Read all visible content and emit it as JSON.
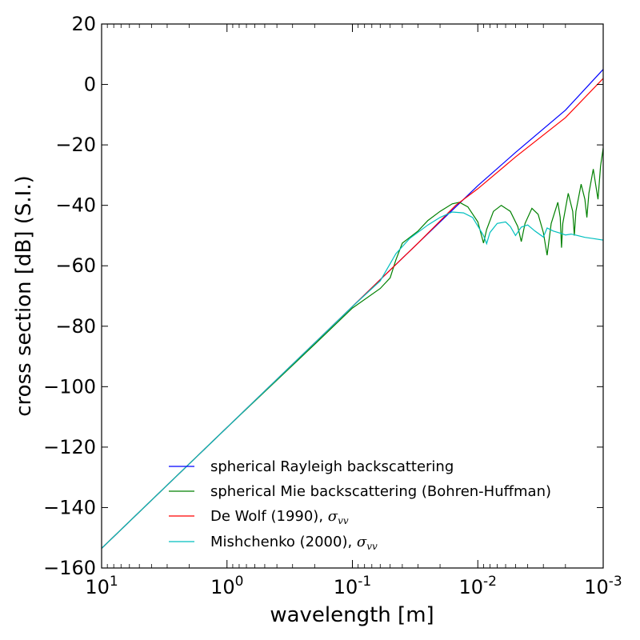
{
  "chart_data": {
    "type": "line",
    "title": "",
    "xlabel": "wavelength [m]",
    "ylabel": "cross section [dB] (S.I.)",
    "x_scale": "log",
    "x_direction": "decreasing",
    "xlim": [
      10,
      0.001
    ],
    "ylim": [
      -160,
      20
    ],
    "x_ticks": [
      {
        "value": 10,
        "base": "10",
        "exp": "1"
      },
      {
        "value": 1,
        "base": "10",
        "exp": "0"
      },
      {
        "value": 0.1,
        "base": "10",
        "exp": "-1"
      },
      {
        "value": 0.01,
        "base": "10",
        "exp": "-2"
      },
      {
        "value": 0.001,
        "base": "10",
        "exp": "-3"
      }
    ],
    "y_ticks": [
      {
        "value": 20,
        "label": "20"
      },
      {
        "value": 0,
        "label": "0"
      },
      {
        "value": -20,
        "label": "−20"
      },
      {
        "value": -40,
        "label": "−40"
      },
      {
        "value": -60,
        "label": "−60"
      },
      {
        "value": -80,
        "label": "−80"
      },
      {
        "value": -100,
        "label": "−100"
      },
      {
        "value": -120,
        "label": "−120"
      },
      {
        "value": -140,
        "label": "−140"
      },
      {
        "value": -160,
        "label": "−160"
      }
    ],
    "grid": false,
    "legend_position": "lower-right",
    "series": [
      {
        "name": "spherical Rayleigh backscattering",
        "color": "#0000ff",
        "points": [
          [
            10,
            -153.5
          ],
          [
            1,
            -113.5
          ],
          [
            0.1,
            -73.5
          ],
          [
            0.03,
            -52.5
          ],
          [
            0.01,
            -33.5
          ],
          [
            0.005,
            -22.5
          ],
          [
            0.002,
            -8.5
          ],
          [
            0.001,
            5
          ]
        ]
      },
      {
        "name": "spherical Mie backscattering (Bohren-Huffman)",
        "color": "#008000",
        "points": [
          [
            10,
            -153.5
          ],
          [
            1,
            -113.5
          ],
          [
            0.2,
            -86
          ],
          [
            0.1,
            -74
          ],
          [
            0.06,
            -67.5
          ],
          [
            0.05,
            -64
          ],
          [
            0.045,
            -58
          ],
          [
            0.04,
            -52.5
          ],
          [
            0.03,
            -48.5
          ],
          [
            0.025,
            -45
          ],
          [
            0.02,
            -42
          ],
          [
            0.016,
            -39.5
          ],
          [
            0.014,
            -39
          ],
          [
            0.012,
            -40.5
          ],
          [
            0.01,
            -45.5
          ],
          [
            0.009,
            -52.5
          ],
          [
            0.0085,
            -48
          ],
          [
            0.0075,
            -42
          ],
          [
            0.0065,
            -40
          ],
          [
            0.0055,
            -42
          ],
          [
            0.0048,
            -47
          ],
          [
            0.0045,
            -52
          ],
          [
            0.0042,
            -46
          ],
          [
            0.0037,
            -41
          ],
          [
            0.0033,
            -43
          ],
          [
            0.003,
            -49
          ],
          [
            0.0028,
            -56.5
          ],
          [
            0.0026,
            -46
          ],
          [
            0.0023,
            -39
          ],
          [
            0.0022,
            -44
          ],
          [
            0.00215,
            -54
          ],
          [
            0.0021,
            -46
          ],
          [
            0.0019,
            -36
          ],
          [
            0.00175,
            -42
          ],
          [
            0.0017,
            -50
          ],
          [
            0.00165,
            -42
          ],
          [
            0.0015,
            -33
          ],
          [
            0.0014,
            -38
          ],
          [
            0.00135,
            -44
          ],
          [
            0.0013,
            -36
          ],
          [
            0.0012,
            -28
          ],
          [
            0.00115,
            -33
          ],
          [
            0.0011,
            -38
          ],
          [
            0.00105,
            -27
          ],
          [
            0.001,
            -21
          ]
        ]
      },
      {
        "name": "De Wolf (1990), σ_vv",
        "name_base": "De Wolf (1990), ",
        "name_math": "σ",
        "name_sub": "vv",
        "color": "#ff0000",
        "points": [
          [
            10,
            -153.5
          ],
          [
            1,
            -113.5
          ],
          [
            0.1,
            -73.5
          ],
          [
            0.03,
            -52.5
          ],
          [
            0.015,
            -40
          ],
          [
            0.01,
            -34.5
          ],
          [
            0.005,
            -24
          ],
          [
            0.002,
            -11
          ],
          [
            0.001,
            2
          ]
        ]
      },
      {
        "name": "Mishchenko (2000), σ_vv",
        "name_base": "Mishchenko (2000), ",
        "name_math": "σ",
        "name_sub": "vv",
        "color": "#00bfbf",
        "points": [
          [
            10,
            -153.5
          ],
          [
            1,
            -113.5
          ],
          [
            0.1,
            -73.5
          ],
          [
            0.06,
            -65
          ],
          [
            0.045,
            -56
          ],
          [
            0.035,
            -51
          ],
          [
            0.025,
            -46.5
          ],
          [
            0.02,
            -44
          ],
          [
            0.016,
            -42.2
          ],
          [
            0.013,
            -42.5
          ],
          [
            0.011,
            -44
          ],
          [
            0.009,
            -50
          ],
          [
            0.0085,
            -52.7
          ],
          [
            0.008,
            -49
          ],
          [
            0.007,
            -46
          ],
          [
            0.006,
            -45.5
          ],
          [
            0.0055,
            -47
          ],
          [
            0.005,
            -50
          ],
          [
            0.0045,
            -47.2
          ],
          [
            0.004,
            -46.5
          ],
          [
            0.0035,
            -48.5
          ],
          [
            0.003,
            -50.5
          ],
          [
            0.0028,
            -47.5
          ],
          [
            0.0025,
            -48.5
          ],
          [
            0.0022,
            -49.2
          ],
          [
            0.002,
            -49.8
          ],
          [
            0.0018,
            -49.5
          ],
          [
            0.0016,
            -50
          ],
          [
            0.0014,
            -50.6
          ],
          [
            0.0012,
            -51
          ],
          [
            0.001,
            -51.5
          ]
        ]
      }
    ]
  }
}
